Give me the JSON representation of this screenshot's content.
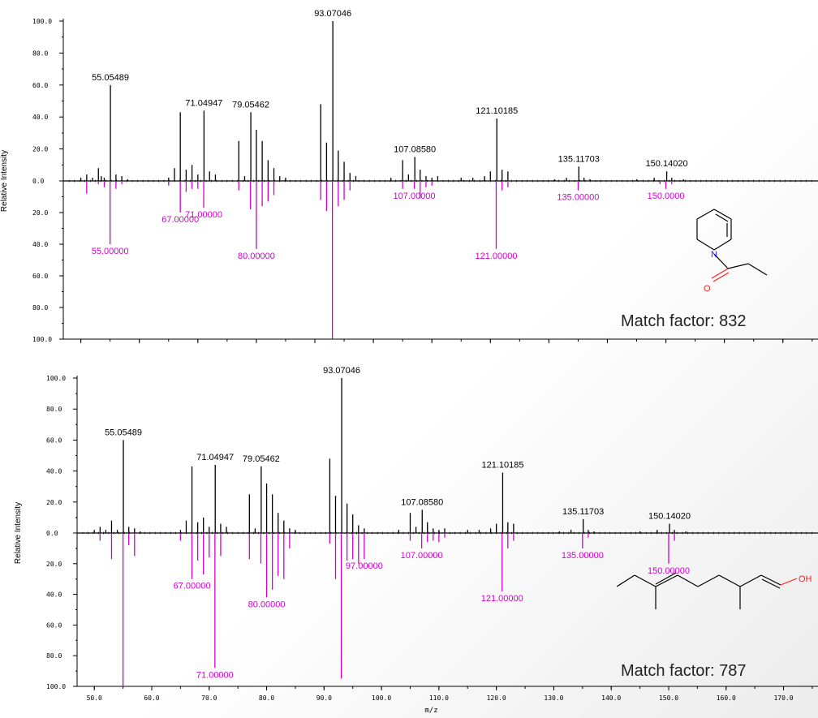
{
  "colors": {
    "top": "#000000",
    "bottom": "#d000d0",
    "atom_N": "#1a1aff",
    "atom_O": "#ff2020",
    "bond": "#000000"
  },
  "x_axis": {
    "label": "m/z",
    "range": [
      47,
      176
    ],
    "ticks": [
      "50.0",
      "60.0",
      "70.0",
      "80.0",
      "90.0",
      "100.0",
      "110.0",
      "120.0",
      "130.0",
      "140.0",
      "150.0",
      "160.0",
      "170.0"
    ]
  },
  "y_axis": {
    "label": "Relative Intensity",
    "ticks_upper": [
      "100.0",
      "80.0",
      "60.0",
      "40.0",
      "20.0",
      "0.0"
    ],
    "ticks_lower": [
      "20.0",
      "40.0",
      "60.0",
      "80.0",
      "100.0"
    ]
  },
  "panels": [
    {
      "match_text": "Match factor: 832",
      "structure_labels": {
        "N": "N",
        "O": "O"
      }
    },
    {
      "match_text": "Match factor: 787",
      "structure_labels": {
        "OH": "OH"
      }
    }
  ],
  "chart_data": [
    {
      "type": "bar",
      "title": "",
      "xlabel": "",
      "ylabel": "Relative Intensity",
      "xlim": [
        47,
        176
      ],
      "ylim": [
        -100,
        100
      ],
      "grid": false,
      "series": [
        {
          "name": "",
          "x": [
            50.0,
            51.0,
            52.0,
            53.0,
            53.5,
            54.0,
            55.05489,
            56.0,
            57.0,
            58.0,
            65.0,
            66.0,
            67.0,
            68.0,
            69.0,
            70.0,
            71.04947,
            72.0,
            73.0,
            77.0,
            78.0,
            79.05462,
            80.0,
            81.0,
            82.0,
            83.0,
            84.0,
            85.0,
            91.0,
            92.0,
            93.07046,
            94.0,
            95.0,
            96.0,
            97.0,
            103.0,
            105.0,
            106.0,
            107.0858,
            108.0,
            109.0,
            110.0,
            111.0,
            115.0,
            117.0,
            119.0,
            120.0,
            121.10185,
            122.0,
            123.0,
            131.0,
            133.0,
            135.11703,
            136.0,
            137.0,
            145.0,
            148.0,
            150.1402,
            151.0,
            153.0
          ],
          "values": [
            2,
            4,
            2,
            8,
            3,
            2,
            60,
            4,
            3,
            1,
            2,
            8,
            43,
            7,
            10,
            4,
            44,
            6,
            4,
            25,
            3,
            43,
            32,
            25,
            13,
            8,
            3,
            2,
            48,
            24,
            100,
            19,
            12,
            5,
            3,
            2,
            13,
            4,
            15,
            7,
            3,
            2,
            3,
            2,
            2,
            3,
            6,
            39,
            7,
            6,
            1,
            2,
            9,
            2,
            1,
            1,
            2,
            6,
            2,
            1
          ],
          "labels": [
            {
              "x": 55.05489,
              "text": "55.05489"
            },
            {
              "x": 71.04947,
              "text": "71.04947"
            },
            {
              "x": 79.05462,
              "text": "79.05462"
            },
            {
              "x": 93.07046,
              "text": "93.07046"
            },
            {
              "x": 107.0858,
              "text": "107.08580"
            },
            {
              "x": 121.10185,
              "text": "121.10185"
            },
            {
              "x": 135.11703,
              "text": "135.11703"
            },
            {
              "x": 150.1402,
              "text": "150.14020"
            }
          ]
        },
        {
          "name": "",
          "x": [
            51.0,
            53.0,
            54.0,
            55.0,
            56.0,
            57.0,
            65.0,
            67.0,
            68.0,
            69.0,
            70.0,
            71.0,
            77.0,
            79.0,
            80.0,
            81.0,
            82.0,
            83.0,
            91.0,
            92.0,
            93.0,
            94.0,
            95.0,
            96.0,
            105.0,
            107.0,
            108.0,
            109.0,
            110.0,
            121.0,
            122.0,
            123.0,
            135.0,
            149.0,
            150.0,
            151.0
          ],
          "values": [
            -8,
            -2,
            -4,
            -40,
            -5,
            -2,
            -3,
            -20,
            -7,
            -5,
            -5,
            -17,
            -6,
            -18,
            -43,
            -16,
            -13,
            -9,
            -12,
            -19,
            -100,
            -16,
            -12,
            -6,
            -5,
            -5,
            -11,
            -4,
            -3,
            -43,
            -6,
            -4,
            -6,
            -2,
            -5,
            -2
          ],
          "labels": [
            {
              "x": 55.0,
              "text": "55.00000"
            },
            {
              "x": 67.0,
              "text": "67.00000"
            },
            {
              "x": 71.0,
              "text": "71.00000"
            },
            {
              "x": 80.0,
              "text": "80.00000"
            },
            {
              "x": 107.0,
              "text": "107.00000"
            },
            {
              "x": 121.0,
              "text": "121.00000"
            },
            {
              "x": 135.0,
              "text": "135.00000"
            },
            {
              "x": 150.0,
              "text": "150.0000"
            }
          ]
        }
      ]
    },
    {
      "type": "bar",
      "title": "",
      "xlabel": "m/z",
      "ylabel": "Relative Intensity",
      "xlim": [
        47,
        176
      ],
      "ylim": [
        -100,
        100
      ],
      "grid": false,
      "series": [
        {
          "name": "",
          "x": [
            50.0,
            51.0,
            52.0,
            53.0,
            54.0,
            55.05489,
            56.0,
            57.0,
            58.0,
            65.0,
            66.0,
            67.0,
            68.0,
            69.0,
            70.0,
            71.04947,
            72.0,
            73.0,
            77.0,
            78.0,
            79.05462,
            80.0,
            81.0,
            82.0,
            83.0,
            84.0,
            85.0,
            91.0,
            92.0,
            93.07046,
            94.0,
            95.0,
            96.0,
            97.0,
            103.0,
            105.0,
            106.0,
            107.0858,
            108.0,
            109.0,
            110.0,
            111.0,
            115.0,
            117.0,
            119.0,
            120.0,
            121.10185,
            122.0,
            123.0,
            131.0,
            133.0,
            135.11703,
            136.0,
            137.0,
            145.0,
            148.0,
            150.1402,
            151.0,
            153.0
          ],
          "values": [
            2,
            4,
            2,
            8,
            2,
            60,
            4,
            3,
            1,
            2,
            8,
            43,
            7,
            10,
            4,
            44,
            6,
            4,
            25,
            3,
            43,
            32,
            25,
            13,
            8,
            3,
            2,
            48,
            24,
            100,
            19,
            12,
            5,
            3,
            2,
            13,
            4,
            15,
            7,
            3,
            2,
            3,
            2,
            2,
            3,
            6,
            39,
            7,
            6,
            1,
            2,
            9,
            2,
            1,
            1,
            2,
            6,
            2,
            1
          ],
          "labels": [
            {
              "x": 55.05489,
              "text": "55.05489"
            },
            {
              "x": 71.04947,
              "text": "71.04947"
            },
            {
              "x": 79.05462,
              "text": "79.05462"
            },
            {
              "x": 93.07046,
              "text": "93.07046"
            },
            {
              "x": 107.0858,
              "text": "107.08580"
            },
            {
              "x": 121.10185,
              "text": "121.10185"
            },
            {
              "x": 135.11703,
              "text": "135.11703"
            },
            {
              "x": 150.1402,
              "text": "150.14020"
            }
          ]
        },
        {
          "name": "",
          "x": [
            51.0,
            53.0,
            55.0,
            56.0,
            57.0,
            65.0,
            67.0,
            68.0,
            69.0,
            70.0,
            71.0,
            72.0,
            77.0,
            79.0,
            80.0,
            81.0,
            82.0,
            83.0,
            84.0,
            91.0,
            92.0,
            93.0,
            94.0,
            95.0,
            96.0,
            97.0,
            105.0,
            107.0,
            108.0,
            109.0,
            110.0,
            111.0,
            121.0,
            122.0,
            123.0,
            135.0,
            136.0,
            150.0,
            151.0
          ],
          "values": [
            -5,
            -17,
            -100,
            -8,
            -15,
            -5,
            -30,
            -18,
            -27,
            -16,
            -88,
            -15,
            -17,
            -20,
            -42,
            -37,
            -28,
            -30,
            -10,
            -7,
            -30,
            -95,
            -18,
            -17,
            -20,
            -17,
            -5,
            -10,
            -6,
            -5,
            -6,
            -3,
            -38,
            -10,
            -5,
            -10,
            -3,
            -20,
            -5
          ],
          "labels": [
            {
              "x": 67.0,
              "text": "67.00000"
            },
            {
              "x": 71.0,
              "text": "71.00000"
            },
            {
              "x": 80.0,
              "text": "80.00000"
            },
            {
              "x": 97.0,
              "text": "97.00000"
            },
            {
              "x": 107.0,
              "text": "107.00000"
            },
            {
              "x": 121.0,
              "text": "121.00000"
            },
            {
              "x": 135.0,
              "text": "135.00000"
            },
            {
              "x": 150.0,
              "text": "150.00000"
            }
          ]
        }
      ]
    }
  ]
}
